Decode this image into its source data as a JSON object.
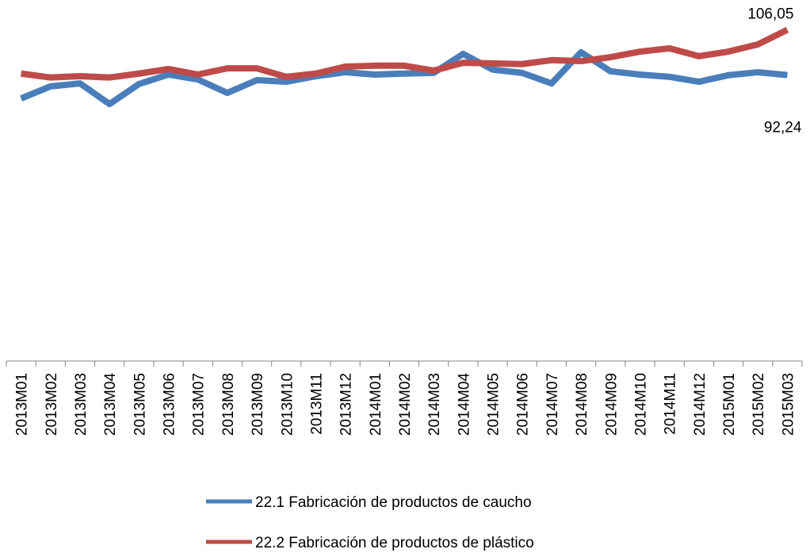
{
  "chart_data": {
    "type": "line",
    "categories": [
      "2013M01",
      "2013M02",
      "2013M03",
      "2013M04",
      "2013M05",
      "2013M06",
      "2013M07",
      "2013M08",
      "2013M09",
      "2013M10",
      "2013M11",
      "2013M12",
      "2014M01",
      "2014M02",
      "2014M03",
      "2014M04",
      "2014M05",
      "2014M06",
      "2014M07",
      "2014M08",
      "2014M09",
      "2014M10",
      "2014M11",
      "2014M12",
      "2015M01",
      "2015M02",
      "2015M03"
    ],
    "series": [
      {
        "name": "22.1 Fabricación de productos de caucho",
        "color": "#4a7ebb",
        "values": [
          85.1,
          88.8,
          89.7,
          83.4,
          89.5,
          92.4,
          90.9,
          86.8,
          90.7,
          90.2,
          91.9,
          93.1,
          92.4,
          92.7,
          92.9,
          98.7,
          93.9,
          92.9,
          89.7,
          99.2,
          93.4,
          92.4,
          91.7,
          90.2,
          92.2,
          93.1,
          92.24
        ],
        "value_labels": [
          null,
          null,
          null,
          null,
          null,
          null,
          null,
          null,
          null,
          null,
          null,
          null,
          null,
          null,
          null,
          null,
          null,
          null,
          null,
          null,
          null,
          null,
          null,
          null,
          null,
          null,
          "92,24"
        ]
      },
      {
        "name": "22.2 Fabricación de productos de plástico",
        "color": "#be4b48",
        "values": [
          92.7,
          91.5,
          91.9,
          91.5,
          92.7,
          94.1,
          92.4,
          94.3,
          94.3,
          91.7,
          92.7,
          94.8,
          95.1,
          95.1,
          93.6,
          96.0,
          95.8,
          95.6,
          96.8,
          96.5,
          97.7,
          99.4,
          100.4,
          98.0,
          99.4,
          101.6,
          106.05
        ],
        "value_labels": [
          null,
          null,
          null,
          null,
          null,
          null,
          null,
          null,
          null,
          null,
          null,
          null,
          null,
          null,
          null,
          null,
          null,
          null,
          null,
          null,
          null,
          null,
          null,
          null,
          null,
          null,
          "106,05"
        ]
      }
    ],
    "ylim": [
      5,
      112
    ]
  }
}
